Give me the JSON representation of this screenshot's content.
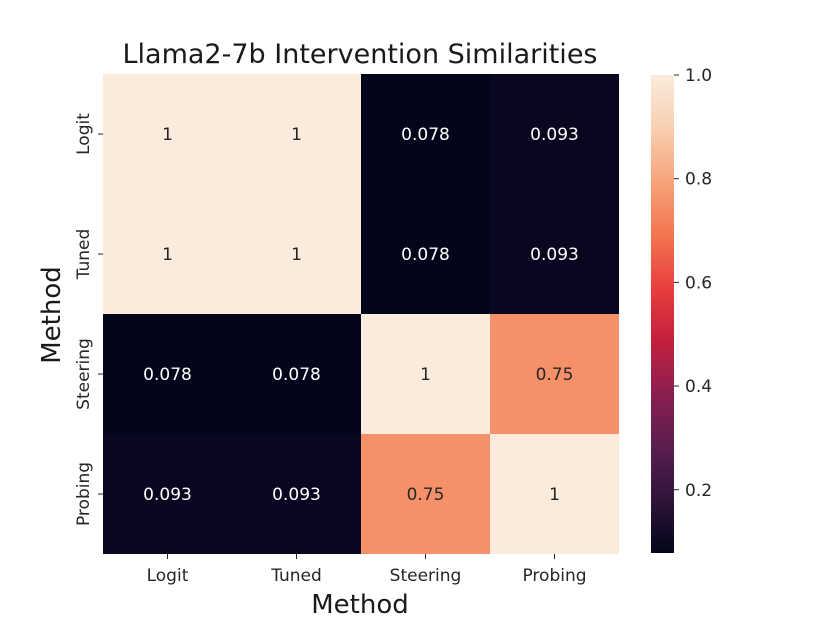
{
  "chart_data": {
    "type": "heatmap",
    "title": "Llama2-7b Intervention Similarities",
    "xlabel": "Method",
    "ylabel": "Method",
    "x_categories": [
      "Logit",
      "Tuned",
      "Steering",
      "Probing"
    ],
    "y_categories": [
      "Logit",
      "Tuned",
      "Steering",
      "Probing"
    ],
    "values": [
      [
        1,
        1,
        0.078,
        0.093
      ],
      [
        1,
        1,
        0.078,
        0.093
      ],
      [
        0.078,
        0.078,
        1,
        0.75
      ],
      [
        0.093,
        0.093,
        0.75,
        1
      ]
    ],
    "cell_labels": [
      [
        "1",
        "1",
        "0.078",
        "0.093"
      ],
      [
        "1",
        "1",
        "0.078",
        "0.093"
      ],
      [
        "0.078",
        "0.078",
        "1",
        "0.75"
      ],
      [
        "0.093",
        "0.093",
        "0.75",
        "1"
      ]
    ],
    "colorbar": {
      "range": [
        0.078,
        1.0
      ],
      "ticks": [
        0.2,
        0.4,
        0.6,
        0.8,
        1.0
      ],
      "tick_labels": [
        "0.2",
        "0.4",
        "0.6",
        "0.8",
        "1.0"
      ],
      "colormap": "rocket",
      "stops": [
        "#03051a",
        "#2e1539",
        "#5a1e4e",
        "#8a1f51",
        "#c4203d",
        "#e83f3f",
        "#f3764f",
        "#f6a47b",
        "#f8cfb0",
        "#faebdd"
      ]
    }
  }
}
